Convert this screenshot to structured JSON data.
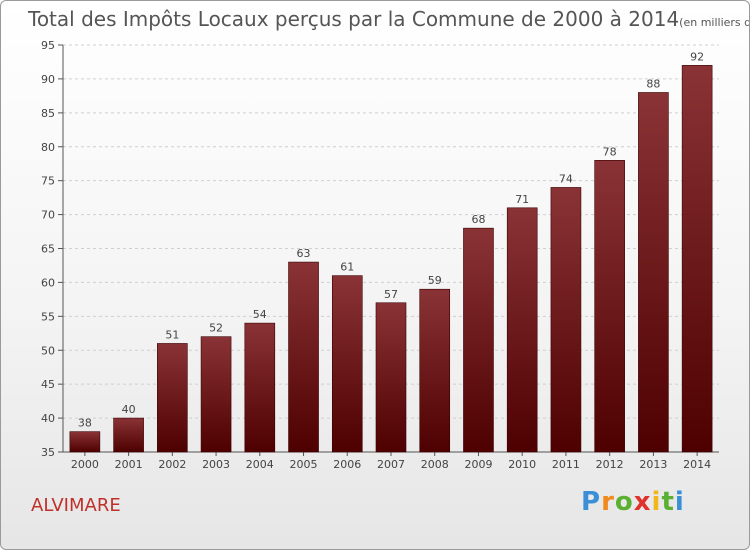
{
  "title": "Total des Impôts Locaux perçus par la Commune de 2000 à 2014",
  "unit": "(en milliers d'€)",
  "commune": "ALVIMARE",
  "brand": {
    "letters": [
      "P",
      "r",
      "o",
      "x",
      "i",
      "t",
      "i"
    ]
  },
  "colors": {
    "bar_top": "#8a3336",
    "bar_bottom": "#4e0000",
    "bar_edge": "#3a0000",
    "commune": "#c0302a"
  },
  "chart_data": {
    "type": "bar",
    "title": "Total des Impôts Locaux perçus par la Commune de 2000 à 2014",
    "categories": [
      "2000",
      "2001",
      "2002",
      "2003",
      "2004",
      "2005",
      "2006",
      "2007",
      "2008",
      "2009",
      "2010",
      "2011",
      "2012",
      "2013",
      "2014"
    ],
    "values": [
      38,
      40,
      51,
      52,
      54,
      63,
      61,
      57,
      59,
      68,
      71,
      74,
      78,
      88,
      92
    ],
    "ylim": [
      35,
      95
    ],
    "yticks": [
      35,
      40,
      45,
      50,
      55,
      60,
      65,
      70,
      75,
      80,
      85,
      90,
      95
    ],
    "grid": true,
    "xlabel": "",
    "ylabel": ""
  }
}
